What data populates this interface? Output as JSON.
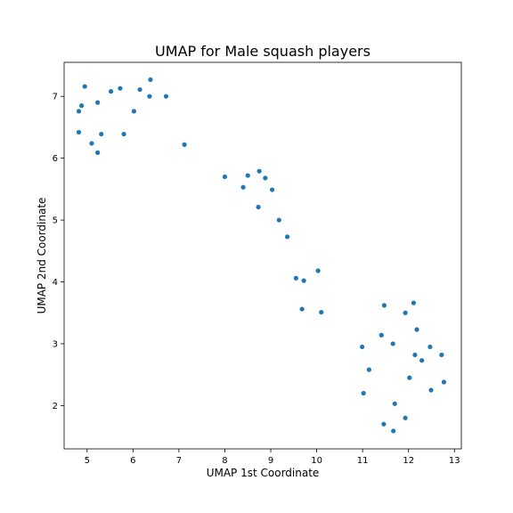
{
  "chart_data": {
    "type": "scatter",
    "title": "UMAP for Male squash players",
    "xlabel": "UMAP 1st Coordinate",
    "ylabel": "UMAP 2nd Coordinate",
    "xlim": [
      4.5,
      13.15
    ],
    "ylim": [
      1.3,
      7.55
    ],
    "xticks": [
      5,
      6,
      7,
      8,
      9,
      10,
      11,
      12,
      13
    ],
    "yticks": [
      2,
      3,
      4,
      5,
      6,
      7
    ],
    "grid": false,
    "marker_color": "#1f77b4",
    "points": [
      [
        4.95,
        7.16
      ],
      [
        5.72,
        7.13
      ],
      [
        6.38,
        7.27
      ],
      [
        5.52,
        7.08
      ],
      [
        6.15,
        7.11
      ],
      [
        6.36,
        7.0
      ],
      [
        6.72,
        7.0
      ],
      [
        5.23,
        6.9
      ],
      [
        4.88,
        6.85
      ],
      [
        4.82,
        6.76
      ],
      [
        6.02,
        6.76
      ],
      [
        4.82,
        6.42
      ],
      [
        5.31,
        6.39
      ],
      [
        5.8,
        6.39
      ],
      [
        5.1,
        6.24
      ],
      [
        7.12,
        6.22
      ],
      [
        5.23,
        6.09
      ],
      [
        8.0,
        5.7
      ],
      [
        8.75,
        5.79
      ],
      [
        8.5,
        5.72
      ],
      [
        8.88,
        5.68
      ],
      [
        8.4,
        5.53
      ],
      [
        9.03,
        5.49
      ],
      [
        8.73,
        5.21
      ],
      [
        9.18,
        5.0
      ],
      [
        9.36,
        4.73
      ],
      [
        10.03,
        4.18
      ],
      [
        9.55,
        4.06
      ],
      [
        9.72,
        4.02
      ],
      [
        9.68,
        3.56
      ],
      [
        10.1,
        3.51
      ],
      [
        11.47,
        3.62
      ],
      [
        12.11,
        3.66
      ],
      [
        11.93,
        3.5
      ],
      [
        12.18,
        3.23
      ],
      [
        11.41,
        3.14
      ],
      [
        11.66,
        3.0
      ],
      [
        10.99,
        2.95
      ],
      [
        12.47,
        2.95
      ],
      [
        12.14,
        2.82
      ],
      [
        12.72,
        2.82
      ],
      [
        12.29,
        2.73
      ],
      [
        11.14,
        2.58
      ],
      [
        12.02,
        2.45
      ],
      [
        12.77,
        2.38
      ],
      [
        11.02,
        2.2
      ],
      [
        12.49,
        2.25
      ],
      [
        11.7,
        2.03
      ],
      [
        11.93,
        1.8
      ],
      [
        11.46,
        1.7
      ],
      [
        11.67,
        1.59
      ]
    ]
  }
}
